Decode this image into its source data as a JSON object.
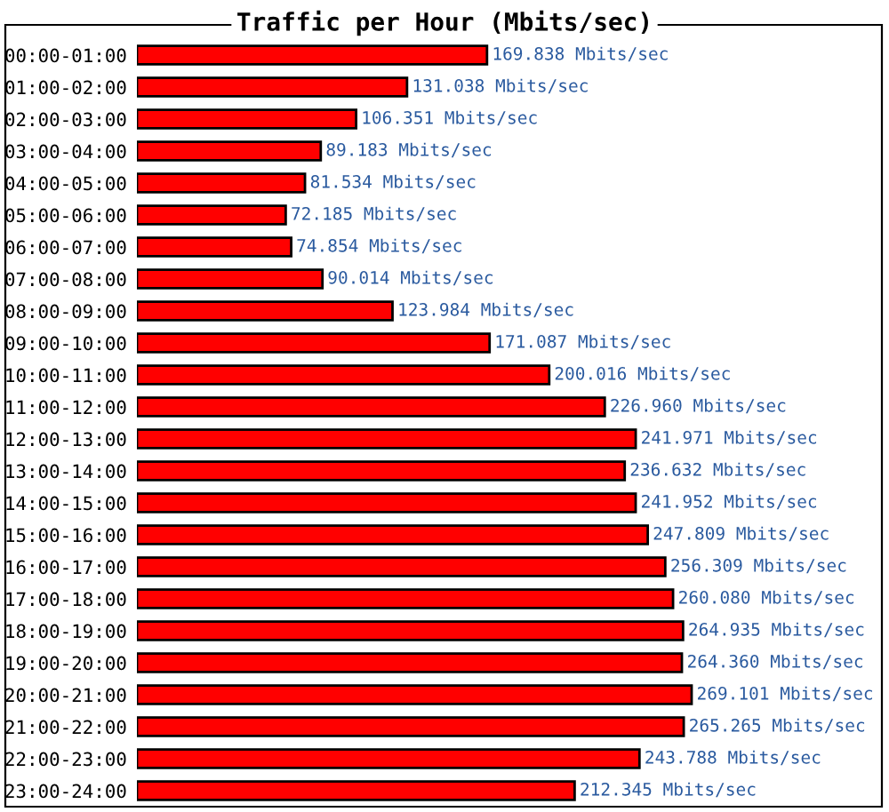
{
  "chart_data": {
    "type": "bar",
    "orientation": "horizontal",
    "title": "Traffic per Hour (Mbits/sec)",
    "categories": [
      "00:00-01:00",
      "01:00-02:00",
      "02:00-03:00",
      "03:00-04:00",
      "04:00-05:00",
      "05:00-06:00",
      "06:00-07:00",
      "07:00-08:00",
      "08:00-09:00",
      "09:00-10:00",
      "10:00-11:00",
      "11:00-12:00",
      "12:00-13:00",
      "13:00-14:00",
      "14:00-15:00",
      "15:00-16:00",
      "16:00-17:00",
      "17:00-18:00",
      "18:00-19:00",
      "19:00-20:00",
      "20:00-21:00",
      "21:00-22:00",
      "22:00-23:00",
      "23:00-24:00"
    ],
    "values": [
      169.838,
      131.038,
      106.351,
      89.183,
      81.534,
      72.185,
      74.854,
      90.014,
      123.984,
      171.087,
      200.016,
      226.96,
      241.971,
      236.632,
      241.952,
      247.809,
      256.309,
      260.08,
      264.935,
      264.36,
      269.101,
      265.265,
      243.788,
      212.345
    ],
    "value_labels": [
      "169.838 Mbits/sec",
      "131.038 Mbits/sec",
      "106.351 Mbits/sec",
      "89.183 Mbits/sec",
      "81.534 Mbits/sec",
      "72.185 Mbits/sec",
      "74.854 Mbits/sec",
      "90.014 Mbits/sec",
      "123.984 Mbits/sec",
      "171.087 Mbits/sec",
      "200.016 Mbits/sec",
      "226.960 Mbits/sec",
      "241.971 Mbits/sec",
      "236.632 Mbits/sec",
      "241.952 Mbits/sec",
      "247.809 Mbits/sec",
      "256.309 Mbits/sec",
      "260.080 Mbits/sec",
      "264.935 Mbits/sec",
      "264.360 Mbits/sec",
      "269.101 Mbits/sec",
      "265.265 Mbits/sec",
      "243.788 Mbits/sec",
      "212.345 Mbits/sec"
    ],
    "color": "#ff0000",
    "grid": false,
    "legend": false
  }
}
